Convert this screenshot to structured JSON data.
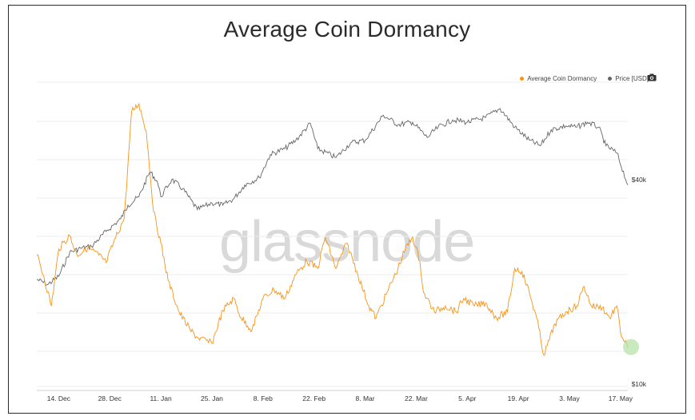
{
  "chart_data": {
    "type": "line",
    "title": "Average Coin Dormancy",
    "watermark": "glassnode",
    "legend_position": "top-right",
    "grid": true,
    "x_tick_labels": [
      "14. Dec",
      "28. Dec",
      "11. Jan",
      "25. Jan",
      "8. Feb",
      "22. Feb",
      "8. Mar",
      "22. Mar",
      "5. Apr",
      "19. Apr",
      "3. May",
      "17. May"
    ],
    "y_right_tick_labels": [
      "$40k",
      "$10k"
    ],
    "x_range": [
      "2020-12-08",
      "2021-05-19"
    ],
    "price_axis": {
      "scale": "log",
      "labeled_ticks": [
        40000,
        10000
      ]
    },
    "series": [
      {
        "name": "Average Coin Dormancy",
        "color": "#f7931a",
        "axis": "left (unlabeled)",
        "points": [
          [
            "2020-12-08",
            0.67
          ],
          [
            "2020-12-10",
            0.52
          ],
          [
            "2020-12-12",
            0.33
          ],
          [
            "2020-12-14",
            0.71
          ],
          [
            "2020-12-17",
            0.8
          ],
          [
            "2020-12-19",
            0.67
          ],
          [
            "2020-12-22",
            0.72
          ],
          [
            "2020-12-25",
            0.67
          ],
          [
            "2020-12-27",
            0.62
          ],
          [
            "2020-12-29",
            0.75
          ],
          [
            "2021-01-01",
            0.92
          ],
          [
            "2021-01-03",
            1.63
          ],
          [
            "2021-01-05",
            1.68
          ],
          [
            "2021-01-07",
            1.5
          ],
          [
            "2021-01-09",
            0.96
          ],
          [
            "2021-01-11",
            0.75
          ],
          [
            "2021-01-13",
            0.5
          ],
          [
            "2021-01-16",
            0.29
          ],
          [
            "2021-01-19",
            0.17
          ],
          [
            "2021-01-21",
            0.12
          ],
          [
            "2021-01-25",
            0.08
          ],
          [
            "2021-01-28",
            0.3
          ],
          [
            "2021-01-31",
            0.38
          ],
          [
            "2021-02-02",
            0.25
          ],
          [
            "2021-02-05",
            0.17
          ],
          [
            "2021-02-08",
            0.38
          ],
          [
            "2021-02-11",
            0.44
          ],
          [
            "2021-02-14",
            0.38
          ],
          [
            "2021-02-17",
            0.54
          ],
          [
            "2021-02-20",
            0.63
          ],
          [
            "2021-02-23",
            0.58
          ],
          [
            "2021-02-25",
            0.79
          ],
          [
            "2021-02-28",
            0.58
          ],
          [
            "2021-03-03",
            0.75
          ],
          [
            "2021-03-06",
            0.54
          ],
          [
            "2021-03-09",
            0.33
          ],
          [
            "2021-03-11",
            0.25
          ],
          [
            "2021-03-14",
            0.42
          ],
          [
            "2021-03-17",
            0.58
          ],
          [
            "2021-03-19",
            0.71
          ],
          [
            "2021-03-21",
            0.79
          ],
          [
            "2021-03-23",
            0.63
          ],
          [
            "2021-03-24",
            0.42
          ],
          [
            "2021-03-27",
            0.29
          ],
          [
            "2021-03-30",
            0.33
          ],
          [
            "2021-04-02",
            0.29
          ],
          [
            "2021-04-04",
            0.38
          ],
          [
            "2021-04-07",
            0.33
          ],
          [
            "2021-04-10",
            0.35
          ],
          [
            "2021-04-13",
            0.25
          ],
          [
            "2021-04-16",
            0.29
          ],
          [
            "2021-04-18",
            0.58
          ],
          [
            "2021-04-20",
            0.56
          ],
          [
            "2021-04-22",
            0.42
          ],
          [
            "2021-04-24",
            0.25
          ],
          [
            "2021-04-26",
            0.0
          ],
          [
            "2021-04-29",
            0.21
          ],
          [
            "2021-05-02",
            0.29
          ],
          [
            "2021-05-05",
            0.33
          ],
          [
            "2021-05-07",
            0.46
          ],
          [
            "2021-05-09",
            0.33
          ],
          [
            "2021-05-12",
            0.32
          ],
          [
            "2021-05-14",
            0.25
          ],
          [
            "2021-05-16",
            0.33
          ],
          [
            "2021-05-17",
            0.15
          ],
          [
            "2021-05-19",
            0.05
          ]
        ]
      },
      {
        "name": "Price [USD]",
        "color": "#666666",
        "axis": "right",
        "points": [
          [
            "2020-12-08",
            18800
          ],
          [
            "2020-12-11",
            18100
          ],
          [
            "2020-12-14",
            19200
          ],
          [
            "2020-12-17",
            22800
          ],
          [
            "2020-12-20",
            23500
          ],
          [
            "2020-12-23",
            23800
          ],
          [
            "2020-12-27",
            26500
          ],
          [
            "2020-12-31",
            29000
          ],
          [
            "2021-01-02",
            32000
          ],
          [
            "2021-01-05",
            34000
          ],
          [
            "2021-01-08",
            40700
          ],
          [
            "2021-01-10",
            38000
          ],
          [
            "2021-01-11",
            34000
          ],
          [
            "2021-01-14",
            38500
          ],
          [
            "2021-01-17",
            36000
          ],
          [
            "2021-01-21",
            31000
          ],
          [
            "2021-01-25",
            32500
          ],
          [
            "2021-01-28",
            32000
          ],
          [
            "2021-01-31",
            33500
          ],
          [
            "2021-02-03",
            37000
          ],
          [
            "2021-02-07",
            39000
          ],
          [
            "2021-02-10",
            46000
          ],
          [
            "2021-02-14",
            48000
          ],
          [
            "2021-02-17",
            51000
          ],
          [
            "2021-02-21",
            57500
          ],
          [
            "2021-02-23",
            48000
          ],
          [
            "2021-02-28",
            45000
          ],
          [
            "2021-03-04",
            50000
          ],
          [
            "2021-03-08",
            51000
          ],
          [
            "2021-03-13",
            61000
          ],
          [
            "2021-03-17",
            57000
          ],
          [
            "2021-03-21",
            58000
          ],
          [
            "2021-03-25",
            52000
          ],
          [
            "2021-03-28",
            56000
          ],
          [
            "2021-04-01",
            59000
          ],
          [
            "2021-04-05",
            58000
          ],
          [
            "2021-04-10",
            60000
          ],
          [
            "2021-04-14",
            64000
          ],
          [
            "2021-04-18",
            56000
          ],
          [
            "2021-04-22",
            51000
          ],
          [
            "2021-04-25",
            49000
          ],
          [
            "2021-04-28",
            55000
          ],
          [
            "2021-05-02",
            56500
          ],
          [
            "2021-05-05",
            56000
          ],
          [
            "2021-05-08",
            58000
          ],
          [
            "2021-05-11",
            56000
          ],
          [
            "2021-05-13",
            49000
          ],
          [
            "2021-05-16",
            46500
          ],
          [
            "2021-05-19",
            37000
          ]
        ]
      }
    ],
    "annotation": {
      "type": "circle-highlight",
      "series": "Average Coin Dormancy",
      "date": "2021-05-19",
      "color": "#b6e3a8"
    }
  }
}
